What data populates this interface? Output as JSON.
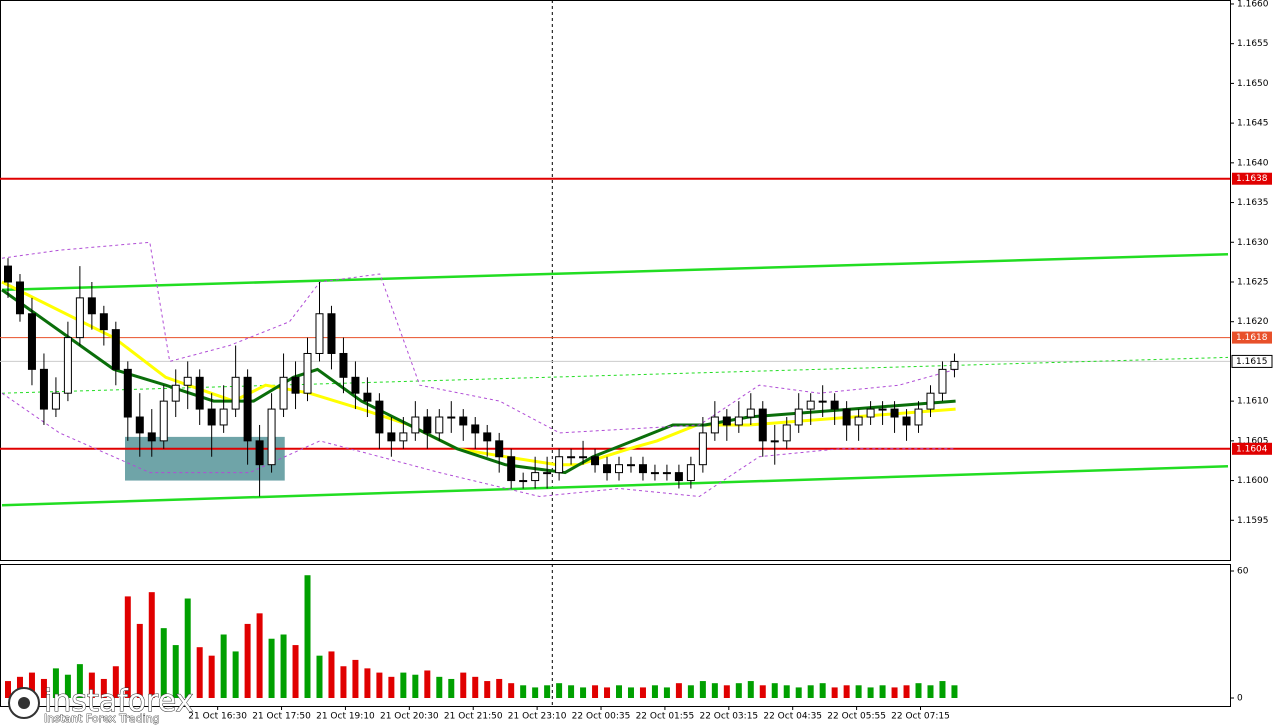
{
  "chart_data": [
    {
      "type": "candlestick",
      "xlim": [
        0,
        1535
      ],
      "ylim": [
        1.159,
        1.16605
      ],
      "yticks": [
        {
          "value": 1.166,
          "label": "1.1660"
        },
        1.1655,
        {
          "value": 1.165,
          "label": "1.1650"
        },
        1.1645,
        {
          "value": 1.164,
          "label": "1.1640"
        },
        1.1635,
        {
          "value": 1.163,
          "label": "1.1630"
        },
        1.1625,
        {
          "value": 1.162,
          "label": "1.1620"
        },
        {
          "value": 1.161,
          "label": "1.1610"
        },
        1.1605,
        {
          "value": 1.16,
          "label": "1.1600"
        },
        1.1595
      ],
      "xticks": [
        {
          "value": 270,
          "label": "21 Oct 16:30"
        },
        {
          "value": 350,
          "label": "21 Oct 17:50"
        },
        {
          "value": 430,
          "label": "21 Oct 19:10"
        },
        {
          "value": 510,
          "label": "21 Oct 20:30"
        },
        {
          "value": 590,
          "label": "21 Oct 21:50"
        },
        {
          "value": 670,
          "label": "21 Oct 23:10"
        },
        {
          "value": 750,
          "label": "22 Oct 00:35"
        },
        {
          "value": 830,
          "label": "22 Oct 01:55"
        },
        {
          "value": 910,
          "label": "22 Oct 03:15"
        },
        {
          "value": 990,
          "label": "22 Oct 04:35"
        },
        {
          "value": 1070,
          "label": "22 Oct 05:55"
        },
        {
          "value": 1150,
          "label": "22 Oct 07:15"
        }
      ],
      "colors": {
        "up": "#ffffff",
        "down": "#000000"
      },
      "candles": [
        [
          1.1627,
          1.1628,
          1.1623,
          1.1625
        ],
        [
          1.1625,
          1.1626,
          1.162,
          1.1621
        ],
        [
          1.1621,
          1.1623,
          1.1612,
          1.1614
        ],
        [
          1.1614,
          1.1616,
          1.1607,
          1.1609
        ],
        [
          1.1609,
          1.1613,
          1.1608,
          1.1611
        ],
        [
          1.1611,
          1.162,
          1.161,
          1.1618
        ],
        [
          1.1618,
          1.1627,
          1.1617,
          1.1623
        ],
        [
          1.1623,
          1.1625,
          1.1619,
          1.1621
        ],
        [
          1.1621,
          1.1622,
          1.1617,
          1.1619
        ],
        [
          1.1619,
          1.162,
          1.1612,
          1.1614
        ],
        [
          1.1614,
          1.1615,
          1.1605,
          1.1608
        ],
        [
          1.1608,
          1.1611,
          1.1603,
          1.1606
        ],
        [
          1.1606,
          1.1609,
          1.1603,
          1.1605
        ],
        [
          1.1605,
          1.1612,
          1.1604,
          1.161
        ],
        [
          1.161,
          1.1614,
          1.1608,
          1.1612
        ],
        [
          1.1612,
          1.1615,
          1.1609,
          1.1613
        ],
        [
          1.1613,
          1.1614,
          1.1607,
          1.1609
        ],
        [
          1.1609,
          1.1611,
          1.1603,
          1.1607
        ],
        [
          1.1607,
          1.1612,
          1.1606,
          1.1609
        ],
        [
          1.1609,
          1.1617,
          1.1608,
          1.1613
        ],
        [
          1.1613,
          1.1614,
          1.1602,
          1.1605
        ],
        [
          1.1605,
          1.1607,
          1.1598,
          1.1602
        ],
        [
          1.1602,
          1.1611,
          1.1601,
          1.1609
        ],
        [
          1.1609,
          1.1616,
          1.1608,
          1.1613
        ],
        [
          1.1613,
          1.1615,
          1.1609,
          1.1611
        ],
        [
          1.1611,
          1.1618,
          1.161,
          1.1616
        ],
        [
          1.1616,
          1.1625,
          1.1615,
          1.1621
        ],
        [
          1.1621,
          1.1622,
          1.1614,
          1.1616
        ],
        [
          1.1616,
          1.1618,
          1.1611,
          1.1613
        ],
        [
          1.1613,
          1.1615,
          1.1609,
          1.1611
        ],
        [
          1.1611,
          1.1613,
          1.1608,
          1.161
        ],
        [
          1.161,
          1.1611,
          1.1604,
          1.1606
        ],
        [
          1.1606,
          1.1608,
          1.1603,
          1.1605
        ],
        [
          1.1605,
          1.1608,
          1.1604,
          1.1606
        ],
        [
          1.1606,
          1.161,
          1.1605,
          1.1608
        ],
        [
          1.1608,
          1.1609,
          1.1604,
          1.1606
        ],
        [
          1.1606,
          1.1609,
          1.1605,
          1.1608
        ],
        [
          1.1608,
          1.161,
          1.1606,
          1.1608
        ],
        [
          1.1608,
          1.1609,
          1.1605,
          1.1607
        ],
        [
          1.1607,
          1.1608,
          1.1604,
          1.1606
        ],
        [
          1.1606,
          1.1607,
          1.1603,
          1.1605
        ],
        [
          1.1605,
          1.1606,
          1.1601,
          1.1603
        ],
        [
          1.1603,
          1.1604,
          1.1599,
          1.16
        ],
        [
          1.16,
          1.1601,
          1.1599,
          1.16
        ],
        [
          1.16,
          1.1603,
          1.1599,
          1.1601
        ],
        [
          1.1601,
          1.1603,
          1.1599,
          1.1601
        ],
        [
          1.1601,
          1.1604,
          1.16,
          1.1603
        ],
        [
          1.1603,
          1.1604,
          1.1602,
          1.1603
        ],
        [
          1.1603,
          1.1605,
          1.1602,
          1.1603
        ],
        [
          1.1603,
          1.1604,
          1.1601,
          1.1602
        ],
        [
          1.1602,
          1.1603,
          1.16,
          1.1601
        ],
        [
          1.1601,
          1.1603,
          1.16,
          1.1602
        ],
        [
          1.1602,
          1.1603,
          1.1601,
          1.1602
        ],
        [
          1.1602,
          1.1603,
          1.16,
          1.1601
        ],
        [
          1.1601,
          1.1602,
          1.16,
          1.1601
        ],
        [
          1.1601,
          1.1602,
          1.16,
          1.1601
        ],
        [
          1.1601,
          1.1602,
          1.1599,
          1.16
        ],
        [
          1.16,
          1.1603,
          1.1599,
          1.1602
        ],
        [
          1.1602,
          1.1608,
          1.1601,
          1.1606
        ],
        [
          1.1606,
          1.161,
          1.1605,
          1.1608
        ],
        [
          1.1608,
          1.1609,
          1.1605,
          1.1607
        ],
        [
          1.1607,
          1.161,
          1.1606,
          1.1608
        ],
        [
          1.1608,
          1.1611,
          1.1607,
          1.1609
        ],
        [
          1.1609,
          1.161,
          1.1603,
          1.1605
        ],
        [
          1.1605,
          1.1607,
          1.1602,
          1.1605
        ],
        [
          1.1605,
          1.1608,
          1.1604,
          1.1607
        ],
        [
          1.1607,
          1.1611,
          1.1606,
          1.1609
        ],
        [
          1.1609,
          1.1611,
          1.1607,
          1.161
        ],
        [
          1.161,
          1.1612,
          1.1608,
          1.161
        ],
        [
          1.161,
          1.1611,
          1.1607,
          1.1609
        ],
        [
          1.1609,
          1.161,
          1.1605,
          1.1607
        ],
        [
          1.1607,
          1.1609,
          1.1605,
          1.1608
        ],
        [
          1.1608,
          1.161,
          1.1607,
          1.1609
        ],
        [
          1.1609,
          1.161,
          1.1607,
          1.1609
        ],
        [
          1.1609,
          1.161,
          1.1606,
          1.1608
        ],
        [
          1.1608,
          1.1609,
          1.1605,
          1.1607
        ],
        [
          1.1607,
          1.161,
          1.1606,
          1.1609
        ],
        [
          1.1609,
          1.1612,
          1.1608,
          1.1611
        ],
        [
          1.1611,
          1.1615,
          1.161,
          1.1614
        ],
        [
          1.1614,
          1.1616,
          1.1613,
          1.1615
        ]
      ],
      "lines": [
        {
          "color": "#22dd22",
          "width": 2.5,
          "x": [
            0,
            1535
          ],
          "values": [
            1.1624,
            1.16285
          ]
        },
        {
          "color": "#22dd22",
          "width": 2.5,
          "x": [
            0,
            1535
          ],
          "values": [
            1.15969,
            1.16018
          ]
        },
        {
          "color": "#22dd22",
          "width": 1,
          "dash": "3,3",
          "x": [
            0,
            1535
          ],
          "values": [
            1.1611,
            1.16155
          ]
        },
        {
          "color": "#ffff00",
          "width": 3,
          "x": [
            0,
            140,
            205,
            290,
            330,
            385,
            450,
            510,
            570,
            630,
            695,
            722,
            785,
            820,
            870,
            935,
            1194
          ],
          "values": [
            1.1625,
            1.1618,
            1.1613,
            1.161,
            1.1612,
            1.1611,
            1.1609,
            1.1607,
            1.1604,
            1.1603,
            1.1602,
            1.1602,
            1.1604,
            1.1605,
            1.1607,
            1.1607,
            1.1609
          ]
        },
        {
          "color": "#0a6e0a",
          "width": 3,
          "x": [
            0,
            70,
            140,
            205,
            265,
            315,
            365,
            395,
            450,
            510,
            570,
            630,
            705,
            740,
            790,
            840,
            880,
            935,
            1194
          ],
          "values": [
            1.1624,
            1.1619,
            1.1614,
            1.1612,
            1.161,
            1.161,
            1.1613,
            1.1614,
            1.161,
            1.1607,
            1.1604,
            1.1602,
            1.1601,
            1.1603,
            1.1605,
            1.1607,
            1.1607,
            1.1608,
            1.161
          ]
        },
        {
          "color": "#b04cd6",
          "width": 1,
          "dash": "3,3",
          "x": [
            0,
            72,
            185,
            210,
            285,
            360,
            398,
            473,
            523,
            623,
            698,
            873,
            948,
            1023,
            1123,
            1194
          ],
          "values": [
            1.1628,
            1.1629,
            1.163,
            1.1615,
            1.1617,
            1.162,
            1.1625,
            1.1626,
            1.1612,
            1.161,
            1.1606,
            1.1607,
            1.1612,
            1.1611,
            1.1612,
            1.1614
          ]
        },
        {
          "color": "#b04cd6",
          "width": 1,
          "dash": "3,3",
          "x": [
            0,
            72,
            185,
            310,
            398,
            473,
            548,
            673,
            773,
            873,
            948,
            1048,
            1194
          ],
          "values": [
            1.1611,
            1.1606,
            1.1601,
            1.1601,
            1.1605,
            1.1603,
            1.1601,
            1.1598,
            1.1599,
            1.1598,
            1.1603,
            1.1604,
            1.1604
          ]
        }
      ],
      "zone": {
        "color": "#5f9a9e",
        "x": [
          154,
          354
        ],
        "y": [
          1.16,
          1.16055
        ]
      },
      "cursor_x": 689,
      "levels": [
        {
          "value": 1.1638,
          "color": "#e00000",
          "width": 2
        },
        {
          "value": 1.1618,
          "color": "#e8502a",
          "width": 1
        },
        {
          "value": 1.1604,
          "color": "#e00000",
          "width": 2
        }
      ],
      "current": {
        "value": 1.1615,
        "color": "#cccccc"
      }
    },
    {
      "type": "volume",
      "ylim": [
        0,
        60
      ],
      "yticks": [
        60,
        0
      ],
      "up_color": "#00a000",
      "down_color": "#e00000",
      "values": [
        8,
        10,
        12,
        9,
        14,
        11,
        16,
        12,
        9,
        15,
        48,
        35,
        50,
        33,
        25,
        47,
        24,
        20,
        30,
        22,
        35,
        40,
        28,
        30,
        25,
        58,
        20,
        22,
        15,
        18,
        14,
        12,
        10,
        12,
        11,
        13,
        10,
        9,
        12,
        10,
        8,
        9,
        7,
        6,
        5,
        6,
        7,
        6,
        5,
        6,
        5,
        6,
        5,
        5,
        6,
        5,
        7,
        6,
        8,
        7,
        6,
        7,
        8,
        6,
        7,
        6,
        5,
        6,
        7,
        5,
        6,
        6,
        5,
        6,
        5,
        6,
        7,
        6,
        8,
        6
      ]
    }
  ],
  "logo": {
    "name": "instaforex",
    "tagline": "Instant Forex Trading"
  }
}
